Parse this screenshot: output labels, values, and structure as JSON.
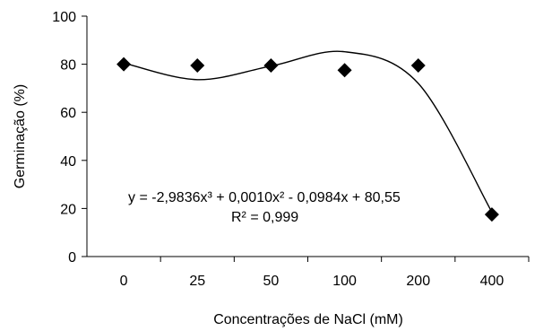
{
  "chart_data": {
    "type": "scatter",
    "xlabel": "Concentrações de NaCl (mM)",
    "ylabel": "Germinação (%)",
    "ylim": [
      0,
      100
    ],
    "yticks": [
      "0",
      "20",
      "40",
      "60",
      "80",
      "100"
    ],
    "categories": [
      "0",
      "25",
      "50",
      "100",
      "200",
      "400"
    ],
    "values": [
      80,
      79.5,
      79.5,
      77.5,
      79.5,
      17.5
    ],
    "marker": "diamond",
    "trendline": {
      "type": "polynomial",
      "order": 3,
      "equation": "y = -2,9836x³ + 0,0010x² - 0,0984x + 80,55",
      "r_squared": "R² = 0,999",
      "values": [
        80.5,
        73.6,
        79.2,
        85.2,
        72.0,
        18.5
      ]
    },
    "grid": false,
    "legend": "none"
  }
}
